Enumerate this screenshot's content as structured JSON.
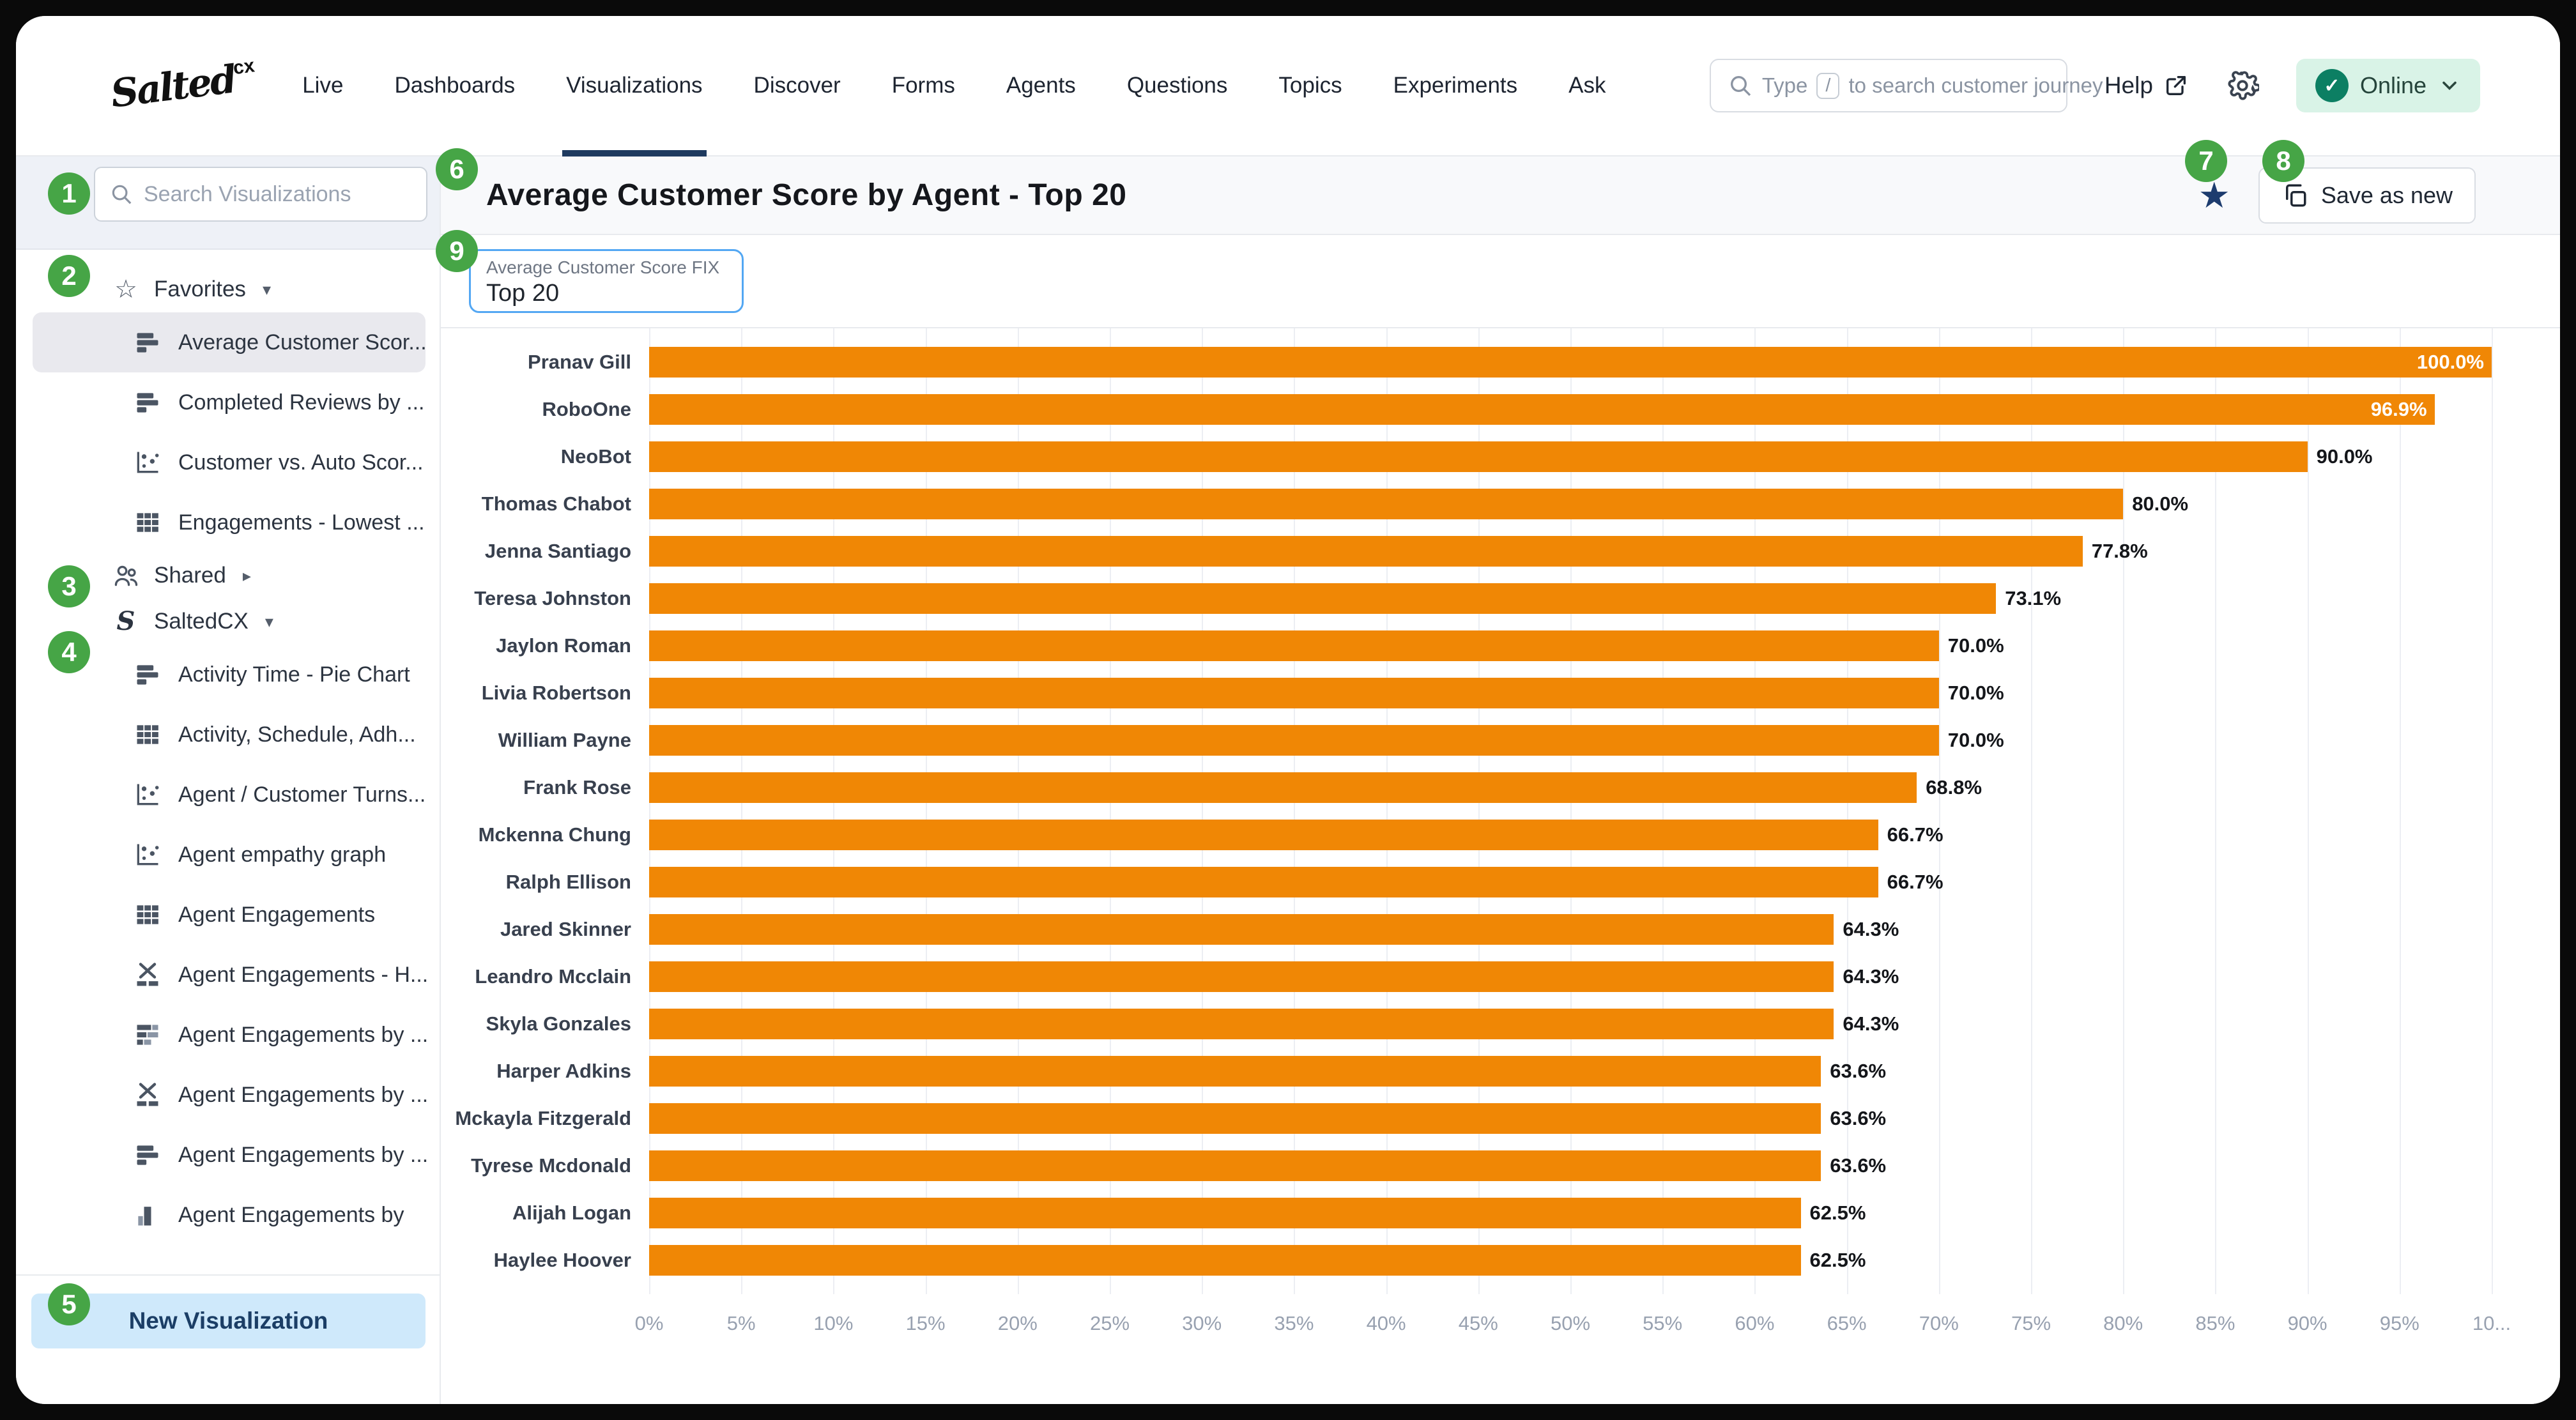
{
  "topnav": {
    "logo_text": "Salted",
    "logo_sup": "cx",
    "items": [
      "Live",
      "Dashboards",
      "Visualizations",
      "Discover",
      "Forms",
      "Agents",
      "Questions",
      "Topics",
      "Experiments",
      "Ask"
    ],
    "active_item": "Visualizations",
    "search_placeholder_prefix": "Type",
    "search_key": "/",
    "search_placeholder_suffix": "to search customer journey",
    "help_label": "Help",
    "status_label": "Online"
  },
  "sidebar": {
    "search_placeholder": "Search Visualizations",
    "sections": [
      {
        "id": "favorites",
        "label": "Favorites",
        "icon": "star",
        "caret": "down",
        "items": [
          {
            "icon": "bar-chart",
            "label": "Average Customer Scor...",
            "selected": true
          },
          {
            "icon": "bar-chart",
            "label": "Completed Reviews by ...",
            "selected": false
          },
          {
            "icon": "scatter",
            "label": "Customer vs. Auto Scor...",
            "selected": false
          },
          {
            "icon": "table",
            "label": "Engagements - Lowest ...",
            "selected": false
          }
        ]
      },
      {
        "id": "shared",
        "label": "Shared",
        "icon": "people",
        "caret": "right",
        "items": []
      },
      {
        "id": "saltedcx",
        "label": "SaltedCX",
        "icon": "s-script",
        "caret": "down",
        "items": [
          {
            "icon": "bar-chart",
            "label": "Activity Time - Pie Chart",
            "selected": false
          },
          {
            "icon": "table",
            "label": "Activity, Schedule, Adh...",
            "selected": false
          },
          {
            "icon": "scatter",
            "label": "Agent / Customer Turns...",
            "selected": false
          },
          {
            "icon": "scatter",
            "label": "Agent empathy graph",
            "selected": false
          },
          {
            "icon": "table",
            "label": "Agent Engagements",
            "selected": false
          },
          {
            "icon": "histogram",
            "label": "Agent Engagements - H...",
            "selected": false
          },
          {
            "icon": "stacked-bars",
            "label": "Agent Engagements by ...",
            "selected": false
          },
          {
            "icon": "histogram",
            "label": "Agent Engagements by ...",
            "selected": false
          },
          {
            "icon": "bar-chart",
            "label": "Agent Engagements by ...",
            "selected": false
          },
          {
            "icon": "column",
            "label": "Agent Engagements by",
            "selected": false
          }
        ]
      }
    ],
    "new_visualization_label": "New Visualization"
  },
  "header": {
    "title": "Average Customer Score by Agent - Top 20",
    "favorite_starred": true,
    "save_as_new_label": "Save as new"
  },
  "filter_chip": {
    "label": "Average Customer Score FIX",
    "value": "Top 20"
  },
  "annotations": {
    "badges": [
      "1",
      "2",
      "3",
      "4",
      "5",
      "6",
      "7",
      "8",
      "9"
    ]
  },
  "chart_data": {
    "type": "bar",
    "orientation": "horizontal",
    "title": "Average Customer Score by Agent - Top 20",
    "categories": [
      "Pranav Gill",
      "RoboOne",
      "NeoBot",
      "Thomas Chabot",
      "Jenna Santiago",
      "Teresa Johnston",
      "Jaylon Roman",
      "Livia Robertson",
      "William Payne",
      "Frank Rose",
      "Mckenna Chung",
      "Ralph Ellison",
      "Jared Skinner",
      "Leandro Mcclain",
      "Skyla Gonzales",
      "Harper Adkins",
      "Mckayla Fitzgerald",
      "Tyrese Mcdonald",
      "Alijah Logan",
      "Haylee Hoover"
    ],
    "values": [
      100.0,
      96.9,
      90.0,
      80.0,
      77.8,
      73.1,
      70.0,
      70.0,
      70.0,
      68.8,
      66.7,
      66.7,
      64.3,
      64.3,
      64.3,
      63.6,
      63.6,
      63.6,
      62.5,
      62.5
    ],
    "value_labels": [
      "100.0%",
      "96.9%",
      "90.0%",
      "80.0%",
      "77.8%",
      "73.1%",
      "70.0%",
      "70.0%",
      "70.0%",
      "68.8%",
      "66.7%",
      "66.7%",
      "64.3%",
      "64.3%",
      "64.3%",
      "63.6%",
      "63.6%",
      "63.6%",
      "62.5%",
      "62.5%"
    ],
    "x_tick_labels": [
      "0%",
      "5%",
      "10%",
      "15%",
      "20%",
      "25%",
      "30%",
      "35%",
      "40%",
      "45%",
      "50%",
      "55%",
      "60%",
      "65%",
      "70%",
      "75%",
      "80%",
      "85%",
      "90%",
      "95%",
      "10..."
    ],
    "xlim": [
      0,
      100
    ],
    "grid": true,
    "legend": false,
    "bar_color": "#f08705",
    "inside_label_min_value": 95
  },
  "colors": {
    "bar_orange": "#f08705",
    "badge_green": "#46a546",
    "active_nav_underline": "#1e3a5f",
    "favorite_star": "#1d3c6e",
    "online_pill_bg": "#d9f3e7",
    "online_check_bg": "#0c7f63",
    "new_viz_bg": "#cfe9fb",
    "new_viz_text": "#1b3e66",
    "chip_border": "#53a7f3",
    "header_bg": "#f8f9fb"
  }
}
